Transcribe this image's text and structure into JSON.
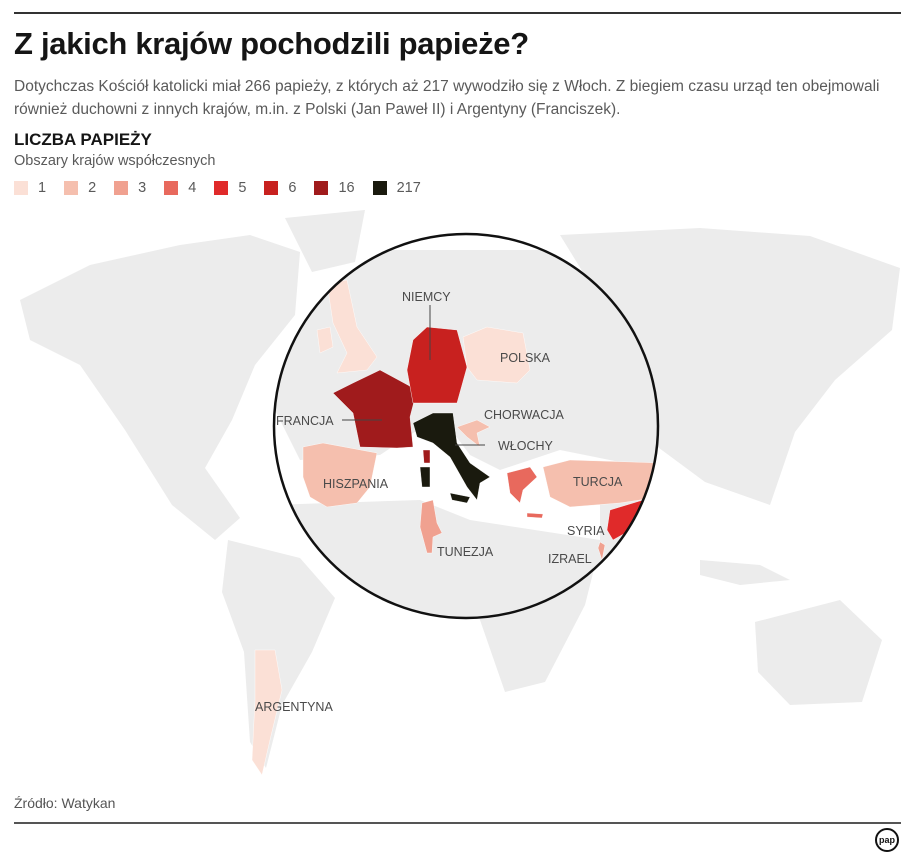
{
  "title": "Z jakich krajów pochodzili papieże?",
  "intro": "Dotychczas Kościół katolicki miał 266 papieży, z których aż 217 wywodziło się z Włoch. Z biegiem czasu urząd ten obejmowali również duchowni z innych krajów, m.in. z Polski (Jan Paweł II) i Argentyny (Franciszek).",
  "legend": {
    "title": "LICZBA PAPIEŻY",
    "subtitle": "Obszary krajów współczesnych",
    "items": [
      {
        "label": "1",
        "color": "#fbe0d6"
      },
      {
        "label": "2",
        "color": "#f5bfae"
      },
      {
        "label": "3",
        "color": "#f0a190"
      },
      {
        "label": "4",
        "color": "#e8695d"
      },
      {
        "label": "5",
        "color": "#e02a2a"
      },
      {
        "label": "6",
        "color": "#c8211f"
      },
      {
        "label": "16",
        "color": "#a01b1c"
      },
      {
        "label": "217",
        "color": "#1a1a0e"
      }
    ]
  },
  "map": {
    "land_color": "#ececec",
    "countries": [
      {
        "id": "uk",
        "popes": 1
      },
      {
        "id": "ireland",
        "popes": 1
      },
      {
        "id": "france",
        "label": "FRANCJA",
        "popes": 16
      },
      {
        "id": "germany",
        "label": "NIEMCY",
        "popes": 6
      },
      {
        "id": "poland",
        "label": "POLSKA",
        "popes": 1
      },
      {
        "id": "spain",
        "label": "HISZPANIA",
        "popes": 2
      },
      {
        "id": "italy",
        "label": "WŁOCHY",
        "popes": 217
      },
      {
        "id": "croatia",
        "label": "CHORWACJA",
        "popes": 2
      },
      {
        "id": "greece",
        "popes": 4
      },
      {
        "id": "turkey",
        "label": "TURCJA",
        "popes": 2
      },
      {
        "id": "syria",
        "label": "SYRIA",
        "popes": 5
      },
      {
        "id": "israel",
        "label": "IZRAEL",
        "popes": 3
      },
      {
        "id": "tunisia",
        "label": "TUNEZJA",
        "popes": 3
      },
      {
        "id": "argentina",
        "label": "ARGENTYNA",
        "popes": 1
      }
    ]
  },
  "source": "Źródło: Watykan",
  "logo": "pap"
}
